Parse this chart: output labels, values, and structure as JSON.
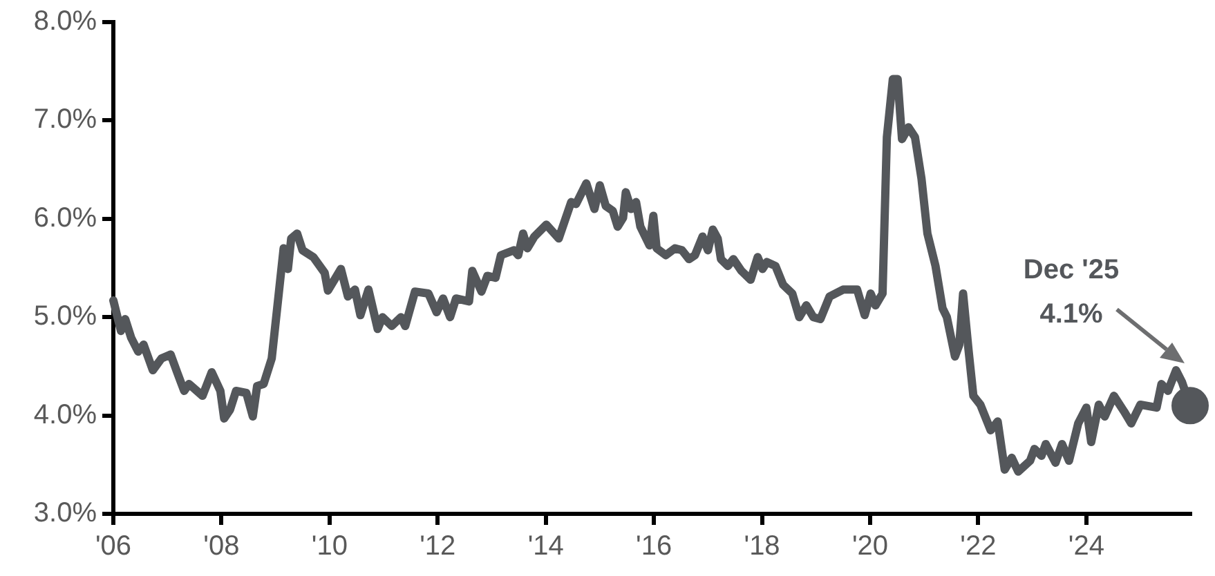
{
  "chart_data": {
    "type": "line",
    "marker": "none",
    "line_style": "solid",
    "xlim": [
      2006,
      2025.92
    ],
    "xticks": [
      {
        "value": 2006,
        "label": "'06"
      },
      {
        "value": 2008,
        "label": "'08"
      },
      {
        "value": 2010,
        "label": "'10"
      },
      {
        "value": 2012,
        "label": "'12"
      },
      {
        "value": 2014,
        "label": "'14"
      },
      {
        "value": 2016,
        "label": "'16"
      },
      {
        "value": 2018,
        "label": "'18"
      },
      {
        "value": 2020,
        "label": "'20"
      },
      {
        "value": 2022,
        "label": "'22"
      },
      {
        "value": 2024,
        "label": "'24"
      }
    ],
    "ylim": [
      3,
      8
    ],
    "yticks": [
      {
        "value": 3,
        "label": "3.0%"
      },
      {
        "value": 4,
        "label": "4.0%"
      },
      {
        "value": 5,
        "label": "5.0%"
      },
      {
        "value": 6,
        "label": "6.0%"
      },
      {
        "value": 7,
        "label": "7.0%"
      },
      {
        "value": 8,
        "label": "8.0%"
      }
    ],
    "annotations": [
      "Dec '25\n4.1%"
    ],
    "series": [
      {
        "color": "#54575b",
        "x": [
          2006.0,
          2006.14,
          2006.22,
          2006.33,
          2006.46,
          2006.56,
          2006.73,
          2006.89,
          2007.06,
          2007.18,
          2007.31,
          2007.4,
          2007.65,
          2007.82,
          2007.98,
          2008.05,
          2008.16,
          2008.27,
          2008.46,
          2008.58,
          2008.66,
          2008.78,
          2008.93,
          2009.06,
          2009.15,
          2009.23,
          2009.29,
          2009.4,
          2009.5,
          2009.7,
          2009.91,
          2009.97,
          2010.21,
          2010.34,
          2010.47,
          2010.57,
          2010.72,
          2010.89,
          2010.98,
          2011.15,
          2011.32,
          2011.4,
          2011.58,
          2011.83,
          2011.98,
          2012.1,
          2012.23,
          2012.34,
          2012.58,
          2012.64,
          2012.81,
          2012.92,
          2013.07,
          2013.17,
          2013.41,
          2013.49,
          2013.58,
          2013.66,
          2013.79,
          2014.01,
          2014.24,
          2014.47,
          2014.56,
          2014.75,
          2014.9,
          2015.0,
          2015.11,
          2015.24,
          2015.33,
          2015.43,
          2015.48,
          2015.58,
          2015.67,
          2015.75,
          2015.92,
          2015.99,
          2016.05,
          2016.22,
          2016.39,
          2016.52,
          2016.65,
          2016.76,
          2016.9,
          2017.0,
          2017.09,
          2017.18,
          2017.24,
          2017.37,
          2017.47,
          2017.62,
          2017.79,
          2017.92,
          2018.01,
          2018.09,
          2018.25,
          2018.39,
          2018.56,
          2018.69,
          2018.82,
          2018.95,
          2019.08,
          2019.25,
          2019.5,
          2019.76,
          2019.9,
          2020.01,
          2020.1,
          2020.23,
          2020.31,
          2020.42,
          2020.51,
          2020.59,
          2020.71,
          2020.83,
          2020.95,
          2021.06,
          2021.21,
          2021.34,
          2021.42,
          2021.57,
          2021.65,
          2021.72,
          2021.82,
          2021.91,
          2022.04,
          2022.23,
          2022.36,
          2022.49,
          2022.62,
          2022.74,
          2022.96,
          2023.04,
          2023.17,
          2023.25,
          2023.43,
          2023.55,
          2023.68,
          2023.85,
          2024.0,
          2024.09,
          2024.23,
          2024.34,
          2024.51,
          2024.7,
          2024.83,
          2025.0,
          2025.3,
          2025.39,
          2025.51,
          2025.66,
          2025.77,
          2025.92
        ],
        "values": [
          5.17,
          4.86,
          4.98,
          4.79,
          4.65,
          4.72,
          4.46,
          4.58,
          4.62,
          4.44,
          4.25,
          4.32,
          4.2,
          4.44,
          4.25,
          3.97,
          4.06,
          4.25,
          4.23,
          3.99,
          4.3,
          4.32,
          4.58,
          5.24,
          5.7,
          5.49,
          5.8,
          5.85,
          5.68,
          5.61,
          5.45,
          5.27,
          5.49,
          5.21,
          5.28,
          5.02,
          5.28,
          4.88,
          5.0,
          4.91,
          5.0,
          4.91,
          5.26,
          5.24,
          5.05,
          5.19,
          5.0,
          5.19,
          5.16,
          5.47,
          5.26,
          5.42,
          5.4,
          5.63,
          5.68,
          5.63,
          5.85,
          5.7,
          5.82,
          5.94,
          5.8,
          6.17,
          6.15,
          6.36,
          6.1,
          6.34,
          6.13,
          6.08,
          5.92,
          6.01,
          6.27,
          6.1,
          6.17,
          5.92,
          5.73,
          6.03,
          5.7,
          5.63,
          5.7,
          5.68,
          5.59,
          5.63,
          5.82,
          5.68,
          5.89,
          5.8,
          5.59,
          5.52,
          5.59,
          5.47,
          5.38,
          5.61,
          5.49,
          5.56,
          5.52,
          5.33,
          5.24,
          5.0,
          5.12,
          5.0,
          4.98,
          5.21,
          5.28,
          5.28,
          5.02,
          5.24,
          5.12,
          5.24,
          6.83,
          7.42,
          7.42,
          6.81,
          6.93,
          6.83,
          6.41,
          5.85,
          5.52,
          5.09,
          5.0,
          4.6,
          4.72,
          5.24,
          4.67,
          4.2,
          4.11,
          3.85,
          3.94,
          3.45,
          3.57,
          3.43,
          3.54,
          3.66,
          3.59,
          3.71,
          3.52,
          3.71,
          3.54,
          3.92,
          4.08,
          3.73,
          4.11,
          3.99,
          4.2,
          4.04,
          3.92,
          4.11,
          4.08,
          4.32,
          4.25,
          4.46,
          4.34,
          4.1
        ]
      },
      {
        "type": "scatter",
        "color": "#54575b",
        "marker": "circle",
        "x": [
          2025.92
        ],
        "values": [
          4.1
        ]
      }
    ]
  }
}
